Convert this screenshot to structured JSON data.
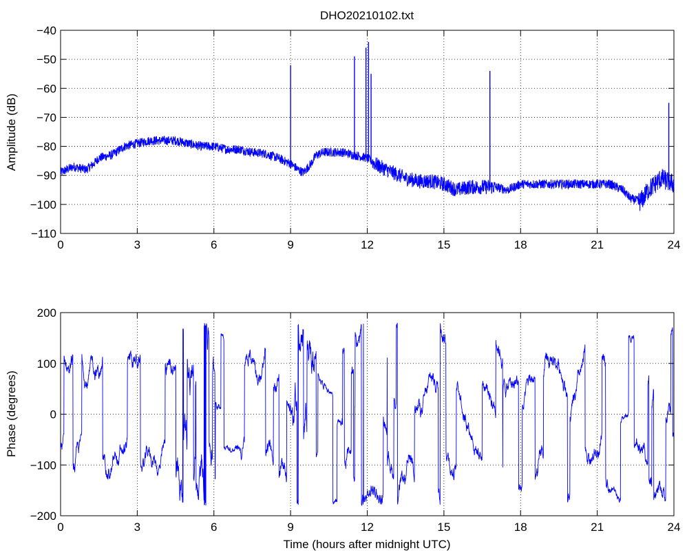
{
  "chart_data": [
    {
      "type": "line",
      "title": "DHO20210102.txt",
      "xlabel": "",
      "ylabel": "Amplitude (dB)",
      "xlim": [
        0,
        24
      ],
      "ylim": [
        -110,
        -40
      ],
      "xticks": [
        0,
        3,
        6,
        9,
        12,
        15,
        18,
        21,
        24
      ],
      "xtick_labels": [
        "0",
        "3",
        "6",
        "9",
        "12",
        "15",
        "18",
        "21",
        "24"
      ],
      "yticks": [
        -40,
        -50,
        -60,
        -70,
        -80,
        -90,
        -100,
        -110
      ],
      "ytick_labels": [
        "−40",
        "−50",
        "−60",
        "−70",
        "−80",
        "−90",
        "−100",
        "−110"
      ],
      "grid": true,
      "color": "#0000ff",
      "series": [
        {
          "x": [
            0,
            0.5,
            1,
            1.3,
            1.5,
            2,
            2.5,
            3,
            3.5,
            4,
            4.5,
            5,
            5.5,
            6,
            6.5,
            7,
            7.5,
            8,
            8.5,
            9,
            9.3,
            9.5,
            9.8,
            10,
            10.3,
            10.7,
            11,
            11.5,
            12,
            12.3,
            12.5,
            13,
            13.5,
            14,
            14.5,
            15,
            15.5,
            16,
            16.5,
            17,
            17.5,
            18,
            18.5,
            19,
            19.5,
            20,
            20.5,
            21,
            21.5,
            22,
            22.3,
            22.7,
            23,
            23.5,
            24
          ],
          "y": [
            -89,
            -87,
            -88,
            -86,
            -84,
            -83,
            -80,
            -79,
            -78,
            -78,
            -78,
            -79,
            -80,
            -80,
            -81,
            -81,
            -82,
            -82.5,
            -84,
            -86,
            -88,
            -89,
            -86,
            -83,
            -82,
            -82,
            -82,
            -83,
            -84,
            -86,
            -87,
            -89,
            -91,
            -92,
            -92,
            -93,
            -95,
            -94,
            -94,
            -94,
            -95,
            -93,
            -93,
            -93,
            -93,
            -93,
            -93,
            -93,
            -93,
            -95,
            -98,
            -99,
            -95,
            -91,
            -93
          ]
        }
      ],
      "spikes": [
        {
          "x": 9.0,
          "y": -52
        },
        {
          "x": 11.5,
          "y": -49
        },
        {
          "x": 11.95,
          "y": -46
        },
        {
          "x": 12.05,
          "y": -44
        },
        {
          "x": 12.15,
          "y": -55
        },
        {
          "x": 16.8,
          "y": -54
        },
        {
          "x": 23.8,
          "y": -65
        }
      ]
    },
    {
      "type": "line",
      "title": "",
      "xlabel": "Time (hours after midnight UTC)",
      "ylabel": "Phase (degrees)",
      "xlim": [
        0,
        24
      ],
      "ylim": [
        -200,
        200
      ],
      "xticks": [
        0,
        3,
        6,
        9,
        12,
        15,
        18,
        21,
        24
      ],
      "xtick_labels": [
        "0",
        "3",
        "6",
        "9",
        "12",
        "15",
        "18",
        "21",
        "24"
      ],
      "yticks": [
        200,
        100,
        0,
        -100,
        -200
      ],
      "ytick_labels": [
        "200",
        "100",
        "0",
        "−100",
        "−200"
      ],
      "grid": true,
      "color": "#0000ff",
      "series": [
        {
          "x": [
            0,
            24
          ],
          "y": [
            -180,
            180
          ],
          "note_range_only": true
        }
      ]
    }
  ]
}
